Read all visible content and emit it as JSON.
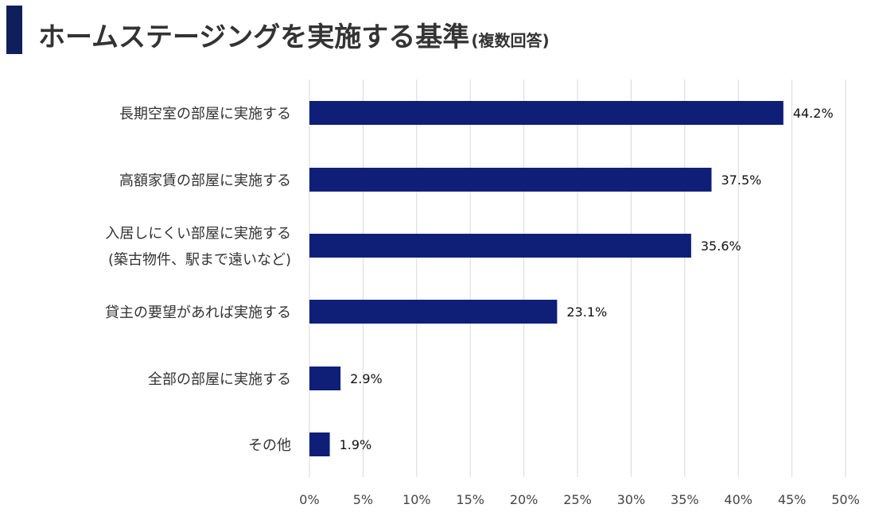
{
  "header": {
    "title": "ホームステージングを実施する基準",
    "subtitle": "(複数回答)",
    "accent_color": "#0f1f5c"
  },
  "chart_data": {
    "type": "bar",
    "orientation": "horizontal",
    "title": "ホームステージングを実施する基準(複数回答)",
    "categories": [
      [
        "長期空室の部屋に実施する"
      ],
      [
        "高額家賃の部屋に実施する"
      ],
      [
        "入居しにくい部屋に実施する",
        "(築古物件、駅まで遠いなど)"
      ],
      [
        "貸主の要望があれば実施する"
      ],
      [
        "全部の部屋に実施する"
      ],
      [
        "その他"
      ]
    ],
    "values": [
      44.2,
      37.5,
      35.6,
      23.1,
      2.9,
      1.9
    ],
    "value_labels": [
      "44.2%",
      "37.5%",
      "35.6%",
      "23.1%",
      "2.9%",
      "1.9%"
    ],
    "xlim": [
      0,
      50
    ],
    "xticks": [
      0,
      5,
      10,
      15,
      20,
      25,
      30,
      35,
      40,
      45,
      50
    ],
    "xtick_labels": [
      "0%",
      "5%",
      "10%",
      "15%",
      "20%",
      "25%",
      "30%",
      "35%",
      "40%",
      "45%",
      "50%"
    ],
    "bar_color": "#0f1f78",
    "gridlines": true,
    "grid_color": "#d9d9d9",
    "legend": "none"
  }
}
